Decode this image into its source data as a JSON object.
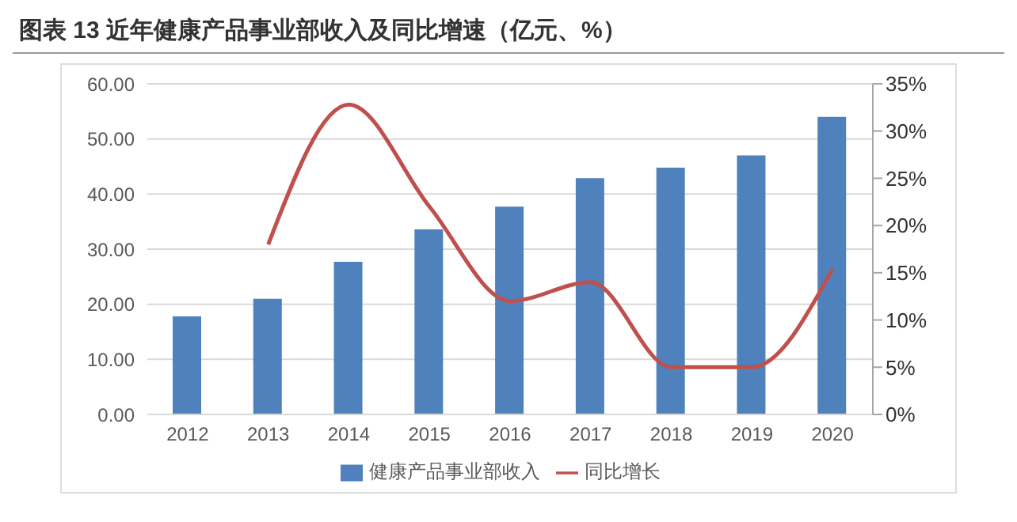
{
  "chart_data": {
    "type": "bar",
    "title": "图表 13 近年健康产品事业部收入及同比增速（亿元、%）",
    "categories": [
      "2012",
      "2013",
      "2014",
      "2015",
      "2016",
      "2017",
      "2018",
      "2019",
      "2020"
    ],
    "series": [
      {
        "name": "健康产品事业部收入",
        "color": "#4f81bd",
        "values": [
          17.8,
          21.0,
          27.7,
          33.6,
          37.7,
          42.9,
          44.8,
          47.0,
          54.0
        ]
      },
      {
        "name": "同比增长",
        "type": "line",
        "axis": "y2",
        "color": "#c0504d",
        "values": [
          null,
          18.0,
          32.8,
          22.0,
          12.0,
          14.0,
          5.0,
          5.0,
          15.4
        ]
      }
    ],
    "ylim": [
      0,
      60
    ],
    "yticks": [
      {
        "value": 0,
        "label": "0.00"
      },
      {
        "value": 10,
        "label": "10.00"
      },
      {
        "value": 20,
        "label": "20.00"
      },
      {
        "value": 30,
        "label": "30.00"
      },
      {
        "value": 40,
        "label": "40.00"
      },
      {
        "value": 50,
        "label": "50.00"
      },
      {
        "value": 60,
        "label": "60.00"
      }
    ],
    "y2lim": [
      0,
      35
    ],
    "y2ticks": [
      {
        "value": 0,
        "label": "0%"
      },
      {
        "value": 5,
        "label": "5%"
      },
      {
        "value": 10,
        "label": "10%"
      },
      {
        "value": 15,
        "label": "15%"
      },
      {
        "value": 20,
        "label": "20%"
      },
      {
        "value": 25,
        "label": "25%"
      },
      {
        "value": 30,
        "label": "30%"
      },
      {
        "value": 35,
        "label": "35%"
      }
    ],
    "grid": "y",
    "legend": "bottom",
    "marker": "none",
    "line_style": "solid"
  }
}
